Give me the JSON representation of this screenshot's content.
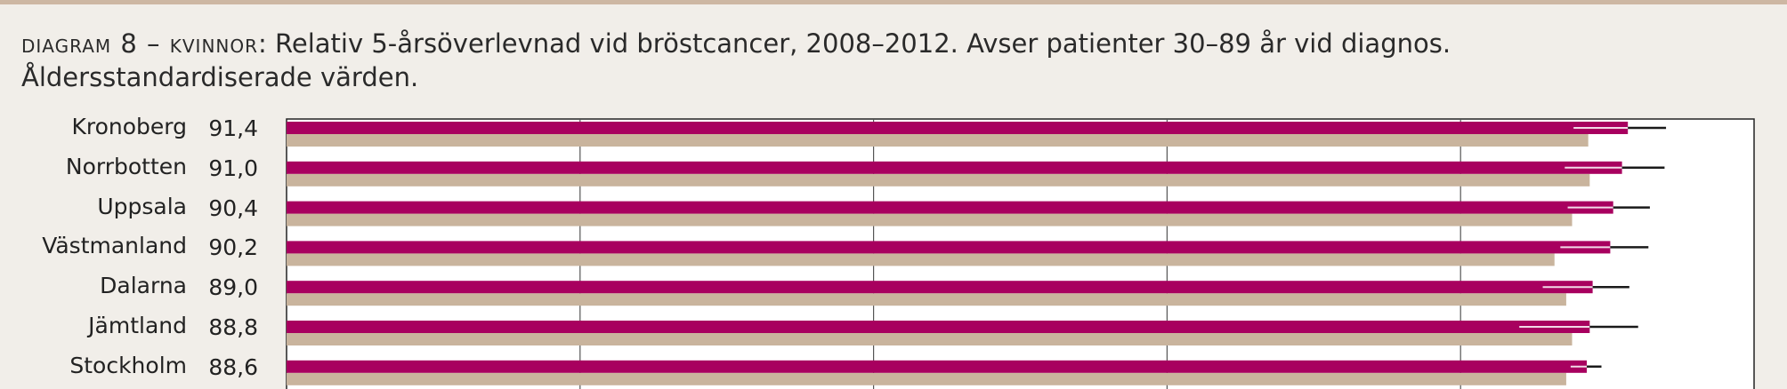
{
  "title": {
    "prefix": "DIAGRAM 8 – KVINNOR",
    "text": ": Relativ 5-årsöverlevnad vid bröstcancer, 2008–2012. Avser patienter 30–89 år vid diagnos. Åldersstandardiserade värden."
  },
  "colors": {
    "primary_bar": "#a8005f",
    "secondary_bar": "#c9b49d",
    "error_bar": "#1a1a1a",
    "background": "#f1eee9",
    "plot_background": "#ffffff",
    "gridline": "#555555"
  },
  "chart_data": {
    "type": "bar",
    "orientation": "horizontal",
    "title": "DIAGRAM 8 – KVINNOR: Relativ 5-årsöverlevnad vid bröstcancer, 2008–2012. Avser patienter 30–89 år vid diagnos. Åldersstandardiserade värden.",
    "xlim": [
      0,
      100
    ],
    "grid": true,
    "categories": [
      "Kronoberg",
      "Norrbotten",
      "Uppsala",
      "Västmanland",
      "Dalarna",
      "Jämtland",
      "Stockholm"
    ],
    "value_labels": [
      "91,4",
      "91,0",
      "90,4",
      "90,2",
      "89,0",
      "88,8",
      "88,6"
    ],
    "series": [
      {
        "values": [
          91.4,
          91.0,
          90.4,
          90.2,
          89.0,
          88.8,
          88.6
        ],
        "ci_low": [
          87.7,
          87.1,
          87.3,
          86.8,
          85.6,
          84.0,
          87.5
        ],
        "ci_high": [
          94.0,
          93.9,
          92.9,
          92.8,
          91.5,
          92.1,
          89.6
        ]
      },
      {
        "values": [
          88.7,
          88.8,
          87.6,
          86.4,
          87.2,
          87.6,
          87.2
        ]
      }
    ]
  }
}
